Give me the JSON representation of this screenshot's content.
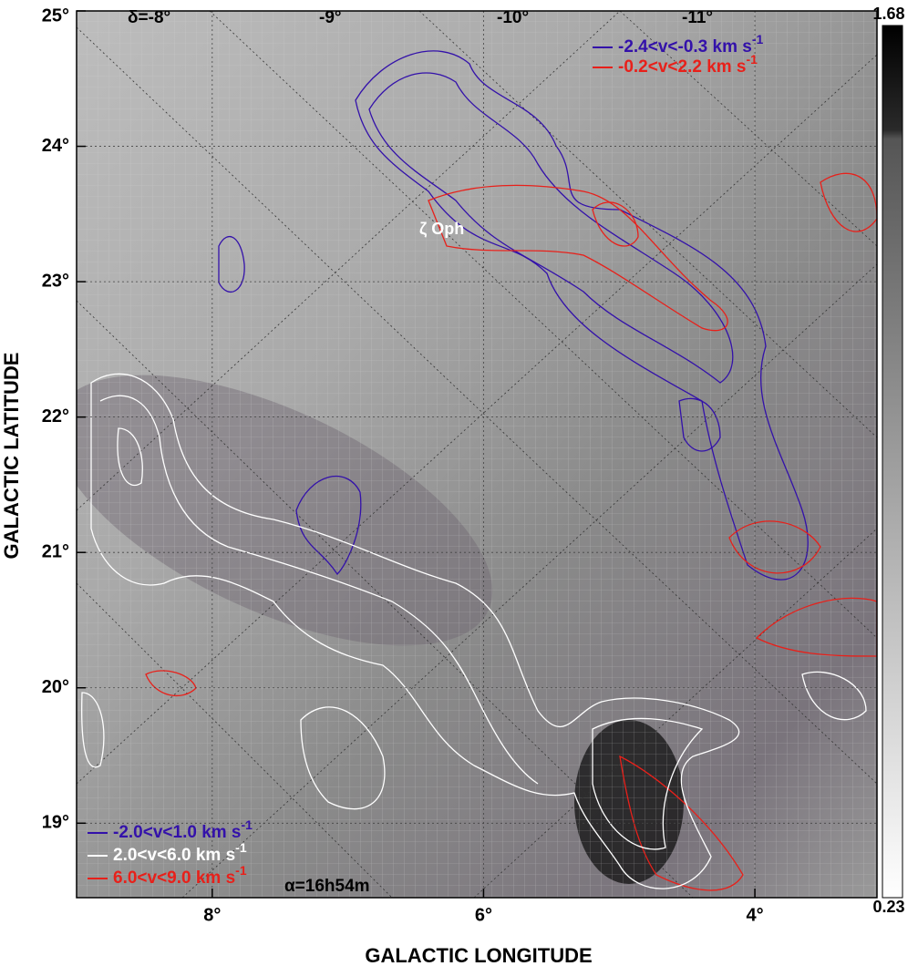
{
  "chart_data": {
    "type": "contour-map",
    "xlabel": "GALACTIC LONGITUDE",
    "ylabel": "GALACTIC LATITUDE",
    "xlim": [
      9.0,
      3.1
    ],
    "ylim": [
      18.45,
      25
    ],
    "xticks": [
      {
        "value": 8,
        "label": "8°"
      },
      {
        "value": 6,
        "label": "6°"
      },
      {
        "value": 4,
        "label": "4°"
      }
    ],
    "yticks": [
      {
        "value": 19,
        "label": "19°"
      },
      {
        "value": 20,
        "label": "20°"
      },
      {
        "value": 21,
        "label": "21°"
      },
      {
        "value": 22,
        "label": "22°"
      },
      {
        "value": 23,
        "label": "23°"
      },
      {
        "value": 24,
        "label": "24°"
      },
      {
        "value": 25,
        "label": "25°"
      }
    ],
    "dec_labels": [
      "δ=-8°",
      "-9°",
      "-10°",
      "-11°"
    ],
    "ra_label": "α=16h54m",
    "star_label": "ζ Oph",
    "colorbar": {
      "max_label": "1.68",
      "min_label": "0.23"
    },
    "legend_top": [
      {
        "text": "-2.4<v<-0.3 km s",
        "sup": "-1",
        "color": "#3311aa"
      },
      {
        "text": "-0.2<v<2.2 km s",
        "sup": "-1",
        "color": "#e8201a"
      }
    ],
    "legend_bottom": [
      {
        "text": "-2.0<v<1.0 km s",
        "sup": "-1",
        "color": "#3311aa"
      },
      {
        "text": "2.0<v<6.0 km s",
        "sup": "-1",
        "color": "#ffffff"
      },
      {
        "text": "6.0<v<9.0 km s",
        "sup": "-1",
        "color": "#e8201a"
      }
    ]
  }
}
